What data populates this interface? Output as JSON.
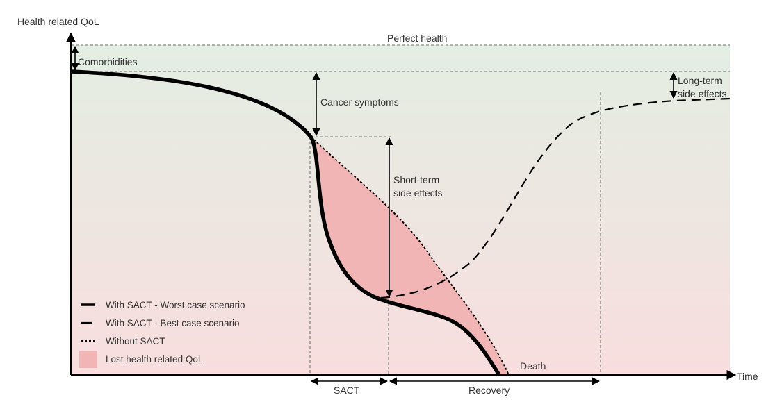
{
  "axes": {
    "y_label": "Health related QoL",
    "x_label": "Time"
  },
  "levels": {
    "perfect_health": "Perfect health"
  },
  "annotations": {
    "comorbidities": "Comorbidities",
    "cancer_symptoms": "Cancer symptoms",
    "short_term_line1": "Short-term",
    "short_term_line2": "side effects",
    "long_term_line1": "Long-term",
    "long_term_line2": "side effects",
    "death": "Death"
  },
  "phases": {
    "sact": "SACT",
    "recovery": "Recovery"
  },
  "legend": [
    {
      "label": "With SACT - Worst case scenario",
      "style": "thick-solid"
    },
    {
      "label": "With SACT - Best case scenario",
      "style": "long-dash"
    },
    {
      "label": "Without SACT",
      "style": "short-dash"
    },
    {
      "label": "Lost health related QoL",
      "style": "fill"
    }
  ],
  "colors": {
    "bg_top": "#e3eee3",
    "bg_bottom": "#f8dede",
    "lost_fill": "#f2b5b5",
    "curve": "#000000",
    "guide": "#9a9a9a"
  }
}
